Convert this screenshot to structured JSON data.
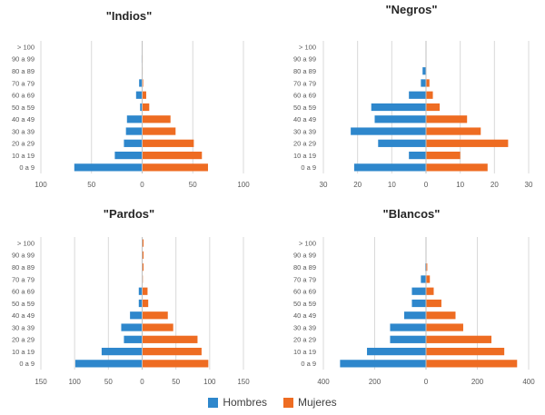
{
  "chart_data": [
    {
      "type": "bar",
      "title": "\"Indios\"",
      "categories": [
        "0 a 9",
        "10 a 19",
        "20 a 29",
        "30 a 39",
        "40 a 49",
        "50 a 59",
        "60 a 69",
        "70 a 79",
        "80 a 89",
        "90 a 99",
        "> 100"
      ],
      "series": [
        {
          "name": "Hombres",
          "values": [
            67,
            27,
            18,
            16,
            15,
            2,
            6,
            3,
            0,
            0.5,
            0
          ]
        },
        {
          "name": "Mujeres",
          "values": [
            65,
            59,
            51,
            33,
            28,
            7,
            4,
            1,
            0.5,
            0.5,
            0
          ]
        }
      ],
      "xlim": [
        -100,
        100
      ],
      "xticks": [
        100,
        50,
        0,
        50,
        100
      ]
    },
    {
      "type": "bar",
      "title": "\"Negros\"",
      "categories": [
        "0 a 9",
        "10 a 19",
        "20 a 29",
        "30 a 39",
        "40 a 49",
        "50 a 59",
        "60 a 69",
        "70 a 79",
        "80 a 89",
        "90 a 99",
        "> 100"
      ],
      "series": [
        {
          "name": "Hombres",
          "values": [
            21,
            5,
            14,
            22,
            15,
            16,
            5,
            1.5,
            1,
            0,
            0
          ]
        },
        {
          "name": "Mujeres",
          "values": [
            18,
            10,
            24,
            16,
            12,
            4,
            2,
            1,
            0,
            0,
            0
          ]
        }
      ],
      "xlim": [
        -30,
        30
      ],
      "xticks": [
        30,
        20,
        10,
        0,
        10,
        20,
        30
      ]
    },
    {
      "type": "bar",
      "title": "\"Pardos\"",
      "categories": [
        "0 a 9",
        "10 a 19",
        "20 a 29",
        "30 a 39",
        "40 a 49",
        "50 a 59",
        "60 a 69",
        "70 a 79",
        "80 a 89",
        "90 a 99",
        "> 100"
      ],
      "series": [
        {
          "name": "Hombres",
          "values": [
            99,
            60,
            27,
            31,
            18,
            5,
            5,
            0,
            0,
            0,
            0
          ]
        },
        {
          "name": "Mujeres",
          "values": [
            98,
            88,
            82,
            46,
            38,
            9,
            8,
            1,
            2,
            2,
            2
          ]
        }
      ],
      "xlim": [
        -150,
        150
      ],
      "xticks": [
        150,
        100,
        50,
        0,
        50,
        100,
        150
      ]
    },
    {
      "type": "bar",
      "title": "\"Blancos\"",
      "categories": [
        "0 a 9",
        "10 a 19",
        "20 a 29",
        "30 a 39",
        "40 a 49",
        "50 a 59",
        "60 a 69",
        "70 a 79",
        "80 a 89",
        "90 a 99",
        "> 100"
      ],
      "series": [
        {
          "name": "Hombres",
          "values": [
            335,
            230,
            140,
            140,
            85,
            55,
            55,
            20,
            3,
            0,
            0
          ]
        },
        {
          "name": "Mujeres",
          "values": [
            355,
            305,
            255,
            145,
            115,
            60,
            30,
            15,
            5,
            0,
            0
          ]
        }
      ],
      "xlim": [
        -400,
        400
      ],
      "xticks": [
        400,
        200,
        0,
        200,
        400
      ]
    }
  ],
  "legend": [
    {
      "label": "Hombres",
      "color": "#2e87cc"
    },
    {
      "label": "Mujeres",
      "color": "#ee6c22"
    }
  ],
  "colors": {
    "hombres": "#2e87cc",
    "mujeres": "#ee6c22",
    "grid": "#d9d9d9",
    "axis": "#bfbfbf"
  }
}
